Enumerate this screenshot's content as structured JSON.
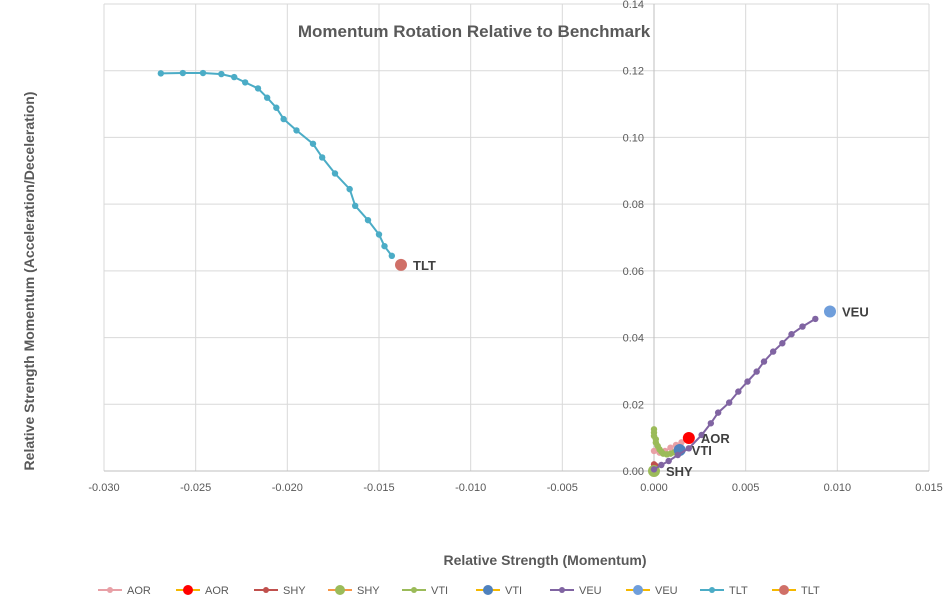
{
  "chart_data": {
    "type": "scatter",
    "title": "Momentum Rotation Relative to Benchmark",
    "xlabel": "Relative Strength (Momentum)",
    "ylabel": "Relative Strength Momentum (Acceleration/Deceleration)",
    "xlim": [
      -0.03,
      0.015
    ],
    "ylim": [
      0.0,
      0.14
    ],
    "x_ticks": [
      "-0.030",
      "-0.025",
      "-0.020",
      "-0.015",
      "-0.010",
      "-0.005",
      "0.000",
      "0.005",
      "0.010",
      "0.015"
    ],
    "y_ticks": [
      "0.00",
      "0.02",
      "0.04",
      "0.06",
      "0.08",
      "0.10",
      "0.12",
      "0.14"
    ],
    "x_tick_values": [
      -0.03,
      -0.025,
      -0.02,
      -0.015,
      -0.01,
      -0.005,
      0.0,
      0.005,
      0.01,
      0.015
    ],
    "y_tick_values": [
      0.0,
      0.02,
      0.04,
      0.06,
      0.08,
      0.1,
      0.12,
      0.14
    ],
    "grid": true,
    "legend_position": "bottom",
    "series": [
      {
        "name": "AOR",
        "kind": "trail",
        "color": "#e8a0a6",
        "points": [
          [
            0.0,
            0.006
          ],
          [
            0.0003,
            0.0055
          ],
          [
            0.0006,
            0.006
          ],
          [
            0.0009,
            0.007
          ],
          [
            0.0012,
            0.0078
          ],
          [
            0.0015,
            0.0086
          ],
          [
            0.0018,
            0.0093
          ]
        ]
      },
      {
        "name": "AOR",
        "kind": "head",
        "color": "#ff0000",
        "label": "AOR",
        "points": [
          [
            0.0019,
            0.0099
          ]
        ]
      },
      {
        "name": "SHY",
        "kind": "trail",
        "color": "#c0504d",
        "points": [
          [
            0.0,
            0.002
          ],
          [
            0.0001,
            0.0015
          ],
          [
            0.0001,
            0.001
          ],
          [
            0.0001,
            0.0005
          ]
        ]
      },
      {
        "name": "SHY",
        "kind": "head",
        "color": "#9bbb59",
        "legend_line": "#f79646",
        "label": "SHY",
        "points": [
          [
            0.0,
            0.0
          ]
        ]
      },
      {
        "name": "VTI",
        "kind": "trail",
        "color": "#9bbb59",
        "points": [
          [
            0.0,
            0.0125
          ],
          [
            0.0,
            0.0115
          ],
          [
            0.0,
            0.0105
          ],
          [
            0.0001,
            0.0095
          ],
          [
            0.0001,
            0.0085
          ],
          [
            0.0002,
            0.0075
          ],
          [
            0.0003,
            0.0065
          ],
          [
            0.0004,
            0.0058
          ],
          [
            0.0005,
            0.0052
          ],
          [
            0.0007,
            0.005
          ],
          [
            0.0009,
            0.0052
          ],
          [
            0.0011,
            0.0056
          ],
          [
            0.0013,
            0.006
          ]
        ]
      },
      {
        "name": "VTI",
        "kind": "head",
        "color": "#4f81bd",
        "label": "VTI",
        "points": [
          [
            0.0014,
            0.0063
          ]
        ]
      },
      {
        "name": "VEU",
        "kind": "trail",
        "color": "#8064a2",
        "points": [
          [
            0.0,
            0.0005
          ],
          [
            0.0004,
            0.0018
          ],
          [
            0.0008,
            0.003
          ],
          [
            0.0013,
            0.0048
          ],
          [
            0.0019,
            0.0068
          ],
          [
            0.0026,
            0.0108
          ],
          [
            0.0031,
            0.0143
          ],
          [
            0.0035,
            0.0175
          ],
          [
            0.0041,
            0.0205
          ],
          [
            0.0046,
            0.0238
          ],
          [
            0.0051,
            0.0268
          ],
          [
            0.0056,
            0.0298
          ],
          [
            0.006,
            0.0328
          ],
          [
            0.0065,
            0.0358
          ],
          [
            0.007,
            0.0383
          ],
          [
            0.0075,
            0.041
          ],
          [
            0.0081,
            0.0433
          ],
          [
            0.0088,
            0.0456
          ]
        ]
      },
      {
        "name": "VEU",
        "kind": "head",
        "color": "#6f9edb",
        "label": "VEU",
        "points": [
          [
            0.0096,
            0.0478
          ]
        ]
      },
      {
        "name": "TLT",
        "kind": "trail",
        "color": "#4bacc6",
        "points": [
          [
            -0.0269,
            0.1192
          ],
          [
            -0.0257,
            0.1193
          ],
          [
            -0.0246,
            0.1193
          ],
          [
            -0.0236,
            0.119
          ],
          [
            -0.0229,
            0.1181
          ],
          [
            -0.0223,
            0.1165
          ],
          [
            -0.0216,
            0.1147
          ],
          [
            -0.0211,
            0.1119
          ],
          [
            -0.0206,
            0.1089
          ],
          [
            -0.0202,
            0.1055
          ],
          [
            -0.0195,
            0.1021
          ],
          [
            -0.0186,
            0.0981
          ],
          [
            -0.0181,
            0.094
          ],
          [
            -0.0174,
            0.0892
          ],
          [
            -0.0166,
            0.0845
          ],
          [
            -0.0163,
            0.0795
          ],
          [
            -0.0156,
            0.0752
          ],
          [
            -0.015,
            0.0709
          ],
          [
            -0.0147,
            0.0674
          ],
          [
            -0.0143,
            0.0645
          ]
        ]
      },
      {
        "name": "TLT",
        "kind": "head",
        "color": "#d07068",
        "label": "TLT",
        "points": [
          [
            -0.0138,
            0.0618
          ]
        ]
      }
    ]
  }
}
